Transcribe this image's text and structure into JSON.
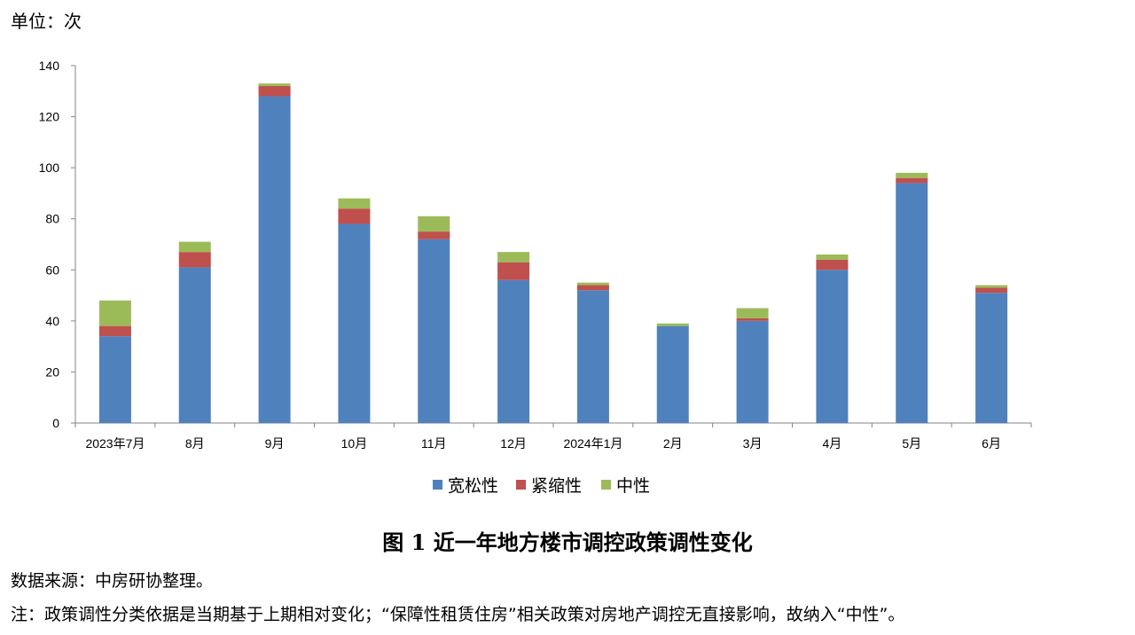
{
  "unit_label": "单位：次",
  "caption": "图 1  近一年地方楼市调控政策调性变化",
  "source": "数据来源：中房研协整理。",
  "note": "注：政策调性分类依据是当期基于上期相对变化；“保障性租赁住房”相关政策对房地产调控无直接影响，故纳入“中性”。",
  "colors": {
    "宽松性": "#4f81bd",
    "紧缩性": "#c0504d",
    "中性": "#9bbb59"
  },
  "chart_data": {
    "type": "bar",
    "stacked": true,
    "title": "",
    "xlabel": "",
    "ylabel": "",
    "ylim": [
      0,
      140
    ],
    "yticks": [
      0,
      20,
      40,
      60,
      80,
      100,
      120,
      140
    ],
    "grid": false,
    "legend": "bottom",
    "categories": [
      "2023年7月",
      "8月",
      "9月",
      "10月",
      "11月",
      "12月",
      "2024年1月",
      "2月",
      "3月",
      "4月",
      "5月",
      "6月"
    ],
    "series": [
      {
        "name": "宽松性",
        "values": [
          34,
          61,
          128,
          78,
          72,
          56,
          52,
          38,
          40,
          60,
          94,
          51
        ]
      },
      {
        "name": "紧缩性",
        "values": [
          4,
          6,
          4,
          6,
          3,
          7,
          2,
          0,
          1,
          4,
          2,
          2
        ]
      },
      {
        "name": "中性",
        "values": [
          10,
          4,
          1,
          4,
          6,
          4,
          1,
          1,
          4,
          2,
          2,
          1
        ]
      }
    ]
  }
}
